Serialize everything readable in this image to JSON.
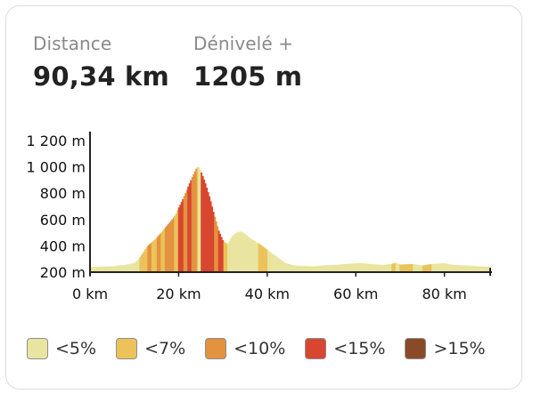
{
  "stats": {
    "distance": {
      "label": "Distance",
      "value": "90,34 km"
    },
    "elevation": {
      "label": "Dénivelé +",
      "value": "1205 m"
    }
  },
  "chart_data": {
    "type": "area",
    "title": "",
    "xlabel": "",
    "ylabel": "",
    "xlim": [
      0,
      90.34
    ],
    "ylim": [
      200,
      1200
    ],
    "x_ticks": [
      0,
      20,
      40,
      60,
      80
    ],
    "x_tick_labels": [
      "0 km",
      "20 km",
      "40 km",
      "60 km",
      "80 km"
    ],
    "y_ticks": [
      200,
      400,
      600,
      800,
      1000,
      1200
    ],
    "y_tick_labels": [
      "200 m",
      "400 m",
      "600 m",
      "800 m",
      "1 000 m",
      "1 200 m"
    ],
    "grid": false,
    "legend": "bottom",
    "gradient_classes": [
      {
        "label": "<5%",
        "color": "#e9e5a0"
      },
      {
        "label": "<7%",
        "color": "#ebc35a"
      },
      {
        "label": "<10%",
        "color": "#e3923f"
      },
      {
        "label": "<15%",
        "color": "#d9462f"
      },
      {
        "label": ">15%",
        "color": "#8a4a27"
      }
    ],
    "profile": [
      {
        "x": 0,
        "y": 240,
        "c": 0
      },
      {
        "x": 5,
        "y": 245,
        "c": 0
      },
      {
        "x": 8,
        "y": 255,
        "c": 0
      },
      {
        "x": 10,
        "y": 270,
        "c": 0
      },
      {
        "x": 11,
        "y": 300,
        "c": 1
      },
      {
        "x": 12,
        "y": 350,
        "c": 1
      },
      {
        "x": 13,
        "y": 400,
        "c": 2
      },
      {
        "x": 14,
        "y": 430,
        "c": 1
      },
      {
        "x": 15,
        "y": 460,
        "c": 2
      },
      {
        "x": 16,
        "y": 500,
        "c": 1
      },
      {
        "x": 17,
        "y": 540,
        "c": 2
      },
      {
        "x": 18,
        "y": 580,
        "c": 2
      },
      {
        "x": 19,
        "y": 620,
        "c": 1
      },
      {
        "x": 20,
        "y": 690,
        "c": 3
      },
      {
        "x": 21,
        "y": 760,
        "c": 2
      },
      {
        "x": 22,
        "y": 840,
        "c": 3
      },
      {
        "x": 23,
        "y": 920,
        "c": 2
      },
      {
        "x": 24,
        "y": 990,
        "c": 1
      },
      {
        "x": 24.5,
        "y": 1000,
        "c": 0
      },
      {
        "x": 25,
        "y": 970,
        "c": 3
      },
      {
        "x": 26,
        "y": 880,
        "c": 3
      },
      {
        "x": 27,
        "y": 770,
        "c": 3
      },
      {
        "x": 28,
        "y": 640,
        "c": 2
      },
      {
        "x": 29,
        "y": 520,
        "c": 3
      },
      {
        "x": 30,
        "y": 440,
        "c": 1
      },
      {
        "x": 31,
        "y": 410,
        "c": 0
      },
      {
        "x": 32,
        "y": 470,
        "c": 0
      },
      {
        "x": 33,
        "y": 500,
        "c": 0
      },
      {
        "x": 34,
        "y": 510,
        "c": 0
      },
      {
        "x": 35,
        "y": 490,
        "c": 0
      },
      {
        "x": 36,
        "y": 460,
        "c": 0
      },
      {
        "x": 38,
        "y": 420,
        "c": 1
      },
      {
        "x": 40,
        "y": 370,
        "c": 0
      },
      {
        "x": 42,
        "y": 320,
        "c": 0
      },
      {
        "x": 44,
        "y": 270,
        "c": 0
      },
      {
        "x": 46,
        "y": 250,
        "c": 0
      },
      {
        "x": 50,
        "y": 245,
        "c": 0
      },
      {
        "x": 55,
        "y": 255,
        "c": 0
      },
      {
        "x": 58,
        "y": 262,
        "c": 0
      },
      {
        "x": 61,
        "y": 270,
        "c": 0
      },
      {
        "x": 63,
        "y": 262,
        "c": 0
      },
      {
        "x": 66,
        "y": 255,
        "c": 0
      },
      {
        "x": 68,
        "y": 262,
        "c": 1
      },
      {
        "x": 69,
        "y": 272,
        "c": 0
      },
      {
        "x": 70,
        "y": 258,
        "c": 1
      },
      {
        "x": 73,
        "y": 262,
        "c": 0
      },
      {
        "x": 75,
        "y": 250,
        "c": 1
      },
      {
        "x": 77,
        "y": 262,
        "c": 0
      },
      {
        "x": 80,
        "y": 268,
        "c": 0
      },
      {
        "x": 82,
        "y": 255,
        "c": 0
      },
      {
        "x": 85,
        "y": 250,
        "c": 0
      },
      {
        "x": 88,
        "y": 245,
        "c": 0
      },
      {
        "x": 90.34,
        "y": 240,
        "c": 0
      }
    ]
  }
}
